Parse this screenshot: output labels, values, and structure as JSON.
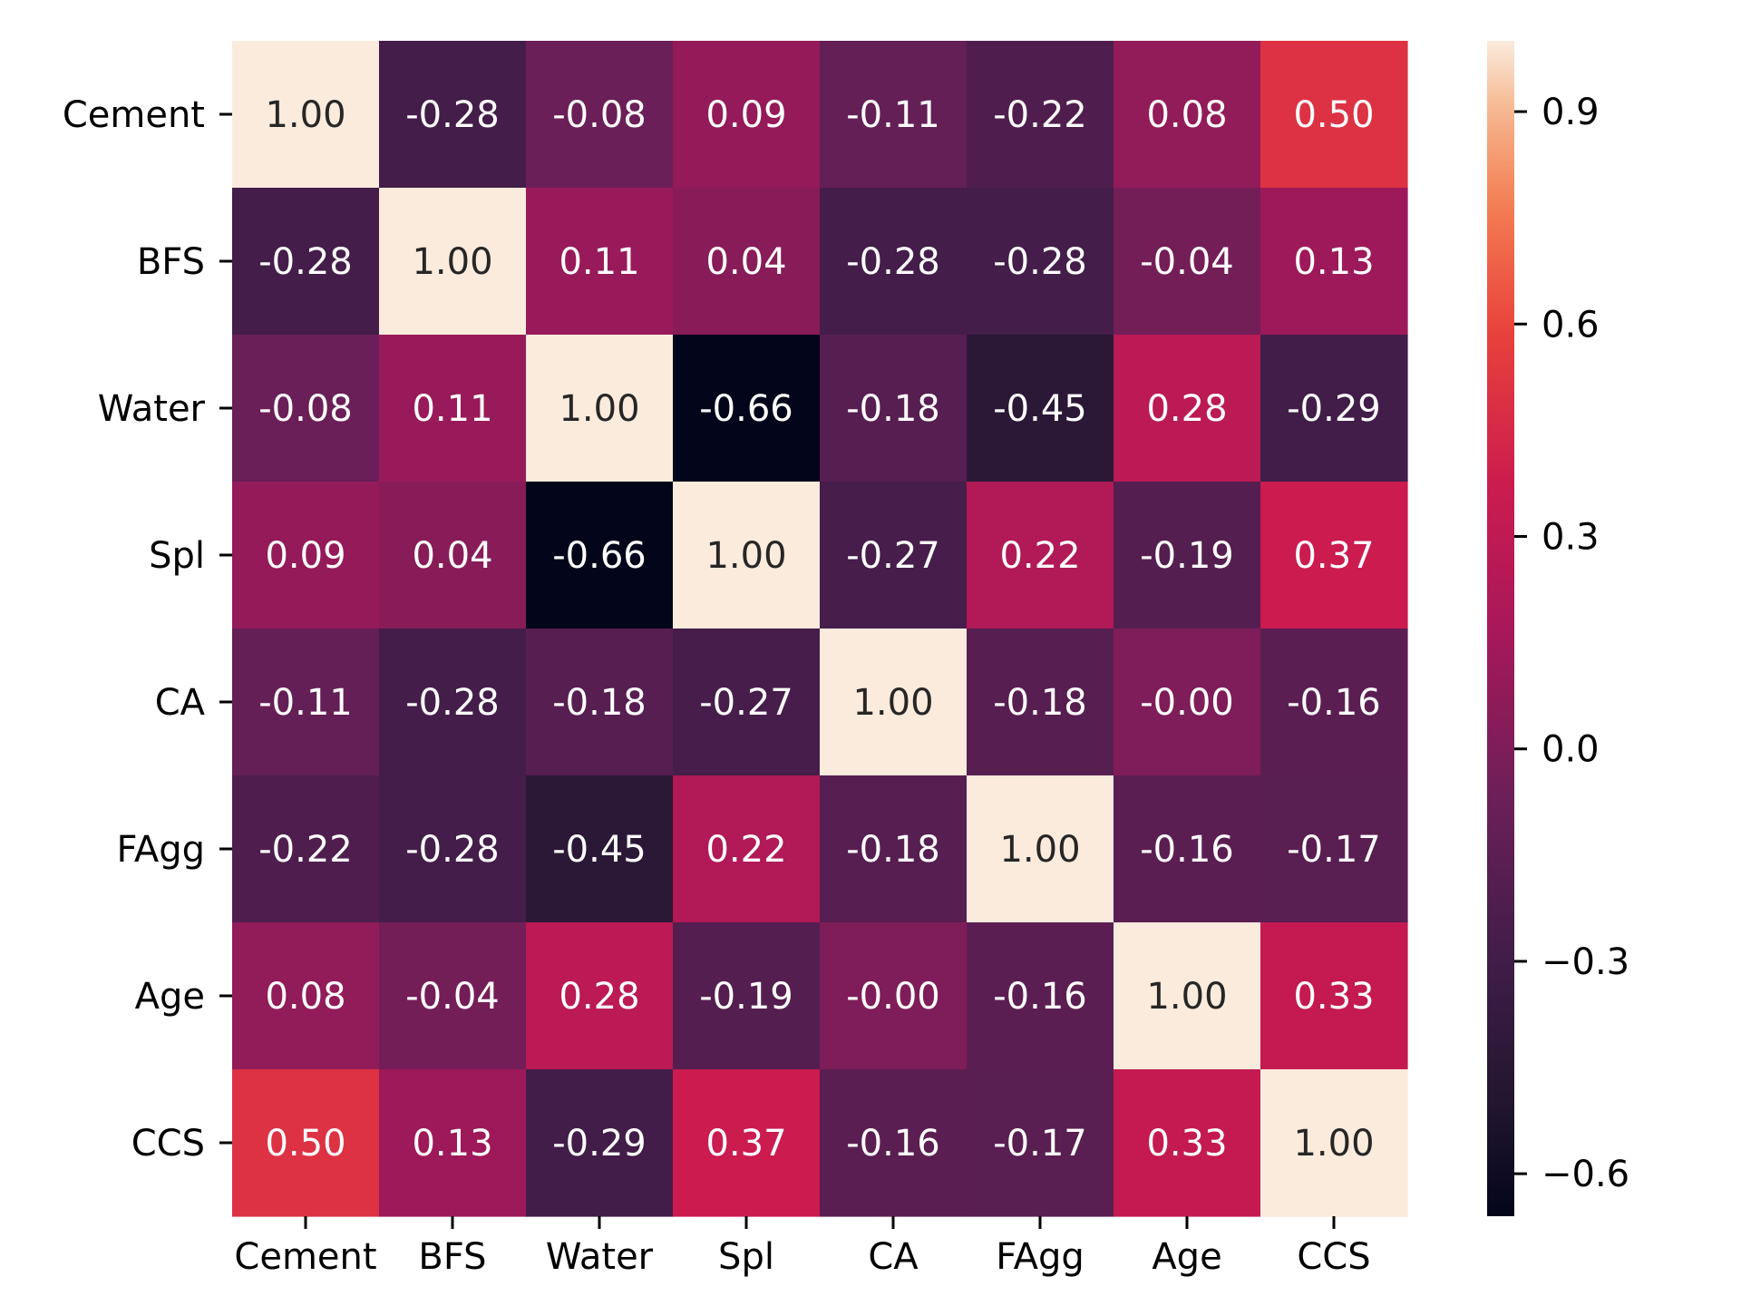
{
  "chart_data": {
    "type": "heatmap",
    "title": "",
    "xlabel": "",
    "ylabel": "",
    "x_categories": [
      "Cement",
      "BFS",
      "Water",
      "Spl",
      "CA",
      "FAgg",
      "Age",
      "CCS"
    ],
    "y_categories": [
      "Cement",
      "BFS",
      "Water",
      "Spl",
      "CA",
      "FAgg",
      "Age",
      "CCS"
    ],
    "values": [
      [
        1.0,
        -0.28,
        -0.08,
        0.09,
        -0.11,
        -0.22,
        0.08,
        0.5
      ],
      [
        -0.28,
        1.0,
        0.11,
        0.04,
        -0.28,
        -0.28,
        -0.04,
        0.13
      ],
      [
        -0.08,
        0.11,
        1.0,
        -0.66,
        -0.18,
        -0.45,
        0.28,
        -0.29
      ],
      [
        0.09,
        0.04,
        -0.66,
        1.0,
        -0.27,
        0.22,
        -0.19,
        0.37
      ],
      [
        -0.11,
        -0.28,
        -0.18,
        -0.27,
        1.0,
        -0.18,
        -0.0,
        -0.16
      ],
      [
        -0.22,
        -0.28,
        -0.45,
        0.22,
        -0.18,
        1.0,
        -0.16,
        -0.17
      ],
      [
        0.08,
        -0.04,
        0.28,
        -0.19,
        -0.0,
        -0.16,
        1.0,
        0.33
      ],
      [
        0.5,
        0.13,
        -0.29,
        0.37,
        -0.16,
        -0.17,
        0.33,
        1.0
      ]
    ],
    "annotations": [
      [
        "1.00",
        "-0.28",
        "-0.08",
        "0.09",
        "-0.11",
        "-0.22",
        "0.08",
        "0.50"
      ],
      [
        "-0.28",
        "1.00",
        "0.11",
        "0.04",
        "-0.28",
        "-0.28",
        "-0.04",
        "0.13"
      ],
      [
        "-0.08",
        "0.11",
        "1.00",
        "-0.66",
        "-0.18",
        "-0.45",
        "0.28",
        "-0.29"
      ],
      [
        "0.09",
        "0.04",
        "-0.66",
        "1.00",
        "-0.27",
        "0.22",
        "-0.19",
        "0.37"
      ],
      [
        "-0.11",
        "-0.28",
        "-0.18",
        "-0.27",
        "1.00",
        "-0.18",
        "-0.00",
        "-0.16"
      ],
      [
        "-0.22",
        "-0.28",
        "-0.45",
        "0.22",
        "-0.18",
        "1.00",
        "-0.16",
        "-0.17"
      ],
      [
        "0.08",
        "-0.04",
        "0.28",
        "-0.19",
        "-0.00",
        "-0.16",
        "1.00",
        "0.33"
      ],
      [
        "0.50",
        "0.13",
        "-0.29",
        "0.37",
        "-0.16",
        "-0.17",
        "0.33",
        "1.00"
      ]
    ],
    "colorbar": {
      "colormap": "rocket",
      "vmin": -0.66,
      "vmax": 1.0,
      "ticks": [
        0.9,
        0.6,
        0.3,
        0.0,
        -0.3,
        -0.6
      ],
      "tick_labels": [
        "0.9",
        "0.6",
        "0.3",
        "0.0",
        "−0.3",
        "−0.6"
      ]
    },
    "grid": false,
    "legend": "colorbar-right"
  }
}
